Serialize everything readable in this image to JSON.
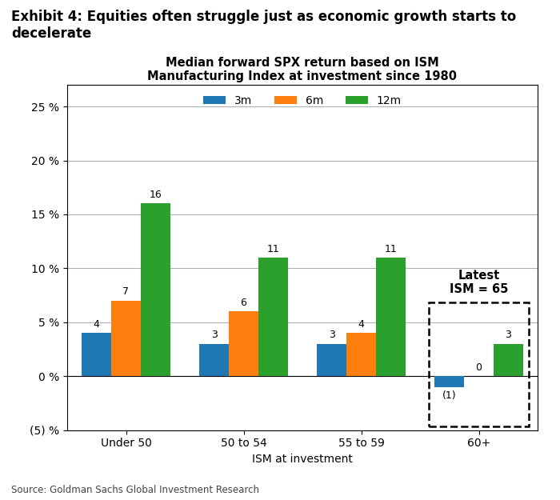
{
  "chart_data": {
    "type": "bar",
    "title": "Exhibit 4: Equities often struggle just as economic growth starts to\ndecelerate",
    "subtitle": "Median forward SPX return based on ISM\nManufacturing Index at investment since 1980",
    "x_label": "ISM at investment",
    "categories": [
      "Under 50",
      "50 to 54",
      "55 to 59",
      "60+"
    ],
    "series": [
      {
        "name": "3m",
        "values": [
          4,
          3,
          3,
          -1
        ],
        "value_labels": [
          "4",
          "3",
          "3",
          "(1)"
        ]
      },
      {
        "name": "6m",
        "values": [
          7,
          6,
          4,
          0
        ],
        "value_labels": [
          "7",
          "6",
          "4",
          "0"
        ]
      },
      {
        "name": "12m",
        "values": [
          16,
          11,
          11,
          3
        ],
        "value_labels": [
          "16",
          "11",
          "11",
          "3"
        ]
      }
    ],
    "ylim": [
      -5,
      27
    ],
    "yticks": [
      {
        "value": -5,
        "label": "(5) %"
      },
      {
        "value": 0,
        "label": "0 %"
      },
      {
        "value": 5,
        "label": "5 %"
      },
      {
        "value": 10,
        "label": "10 %"
      },
      {
        "value": 15,
        "label": "15 %"
      },
      {
        "value": 20,
        "label": "20 %"
      },
      {
        "value": 25,
        "label": "25 %"
      }
    ],
    "grid": true,
    "legend": "upper center",
    "data_labels": true,
    "annotations": [
      {
        "text": "Latest\nISM = 65",
        "category": "60+"
      }
    ],
    "source": "Source: Goldman Sachs Global Investment Research"
  }
}
